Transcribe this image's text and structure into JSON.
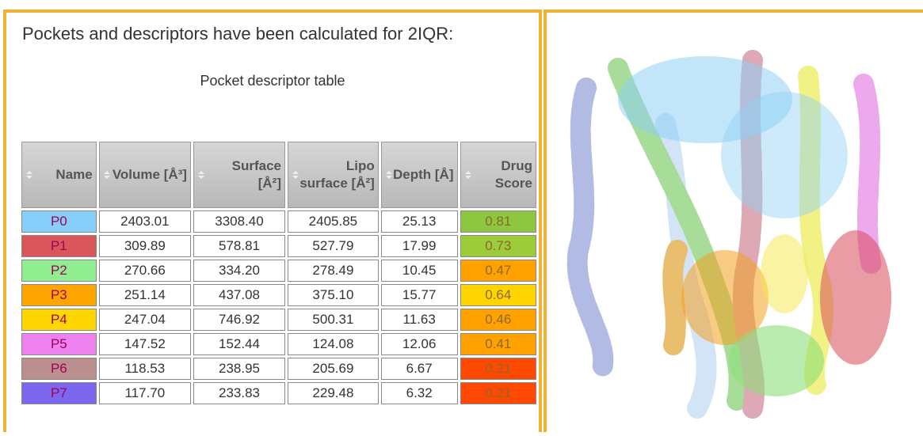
{
  "intro": "Pockets and descriptors have been calculated for 2IQR:",
  "caption": "Pocket descriptor table",
  "table": {
    "headers": [
      "Name",
      "Volume [Å³]",
      "Surface [Å²]",
      "Lipo surface [Å²]",
      "Depth [Å]",
      "Drug Score"
    ],
    "rows": [
      {
        "cells": [
          "P0",
          "2403.01",
          "3308.40",
          "2405.85",
          "25.13",
          "0.81"
        ],
        "name_color": "#87cefa",
        "score_color": "#8dc63f"
      },
      {
        "cells": [
          "P1",
          "309.89",
          "578.81",
          "527.79",
          "17.99",
          "0.73"
        ],
        "name_color": "#d9575a",
        "score_color": "#9ccc3a"
      },
      {
        "cells": [
          "P2",
          "270.66",
          "334.20",
          "278.49",
          "10.45",
          "0.47"
        ],
        "name_color": "#90ee90",
        "score_color": "#ffa200"
      },
      {
        "cells": [
          "P3",
          "251.14",
          "437.08",
          "375.10",
          "15.77",
          "0.64"
        ],
        "name_color": "#ffa500",
        "score_color": "#ffd400"
      },
      {
        "cells": [
          "P4",
          "247.04",
          "746.92",
          "500.31",
          "11.63",
          "0.46"
        ],
        "name_color": "#ffd700",
        "score_color": "#ffa200"
      },
      {
        "cells": [
          "P5",
          "147.52",
          "152.44",
          "124.08",
          "12.06",
          "0.41"
        ],
        "name_color": "#ee82ee",
        "score_color": "#ffa200"
      },
      {
        "cells": [
          "P6",
          "118.53",
          "238.95",
          "205.69",
          "6.67",
          "0.21"
        ],
        "name_color": "#bc8f8f",
        "score_color": "#ff4800"
      },
      {
        "cells": [
          "P7",
          "117.70",
          "233.83",
          "229.48",
          "6.32",
          "0.21"
        ],
        "name_color": "#7b68ee",
        "score_color": "#ff4800"
      }
    ]
  }
}
